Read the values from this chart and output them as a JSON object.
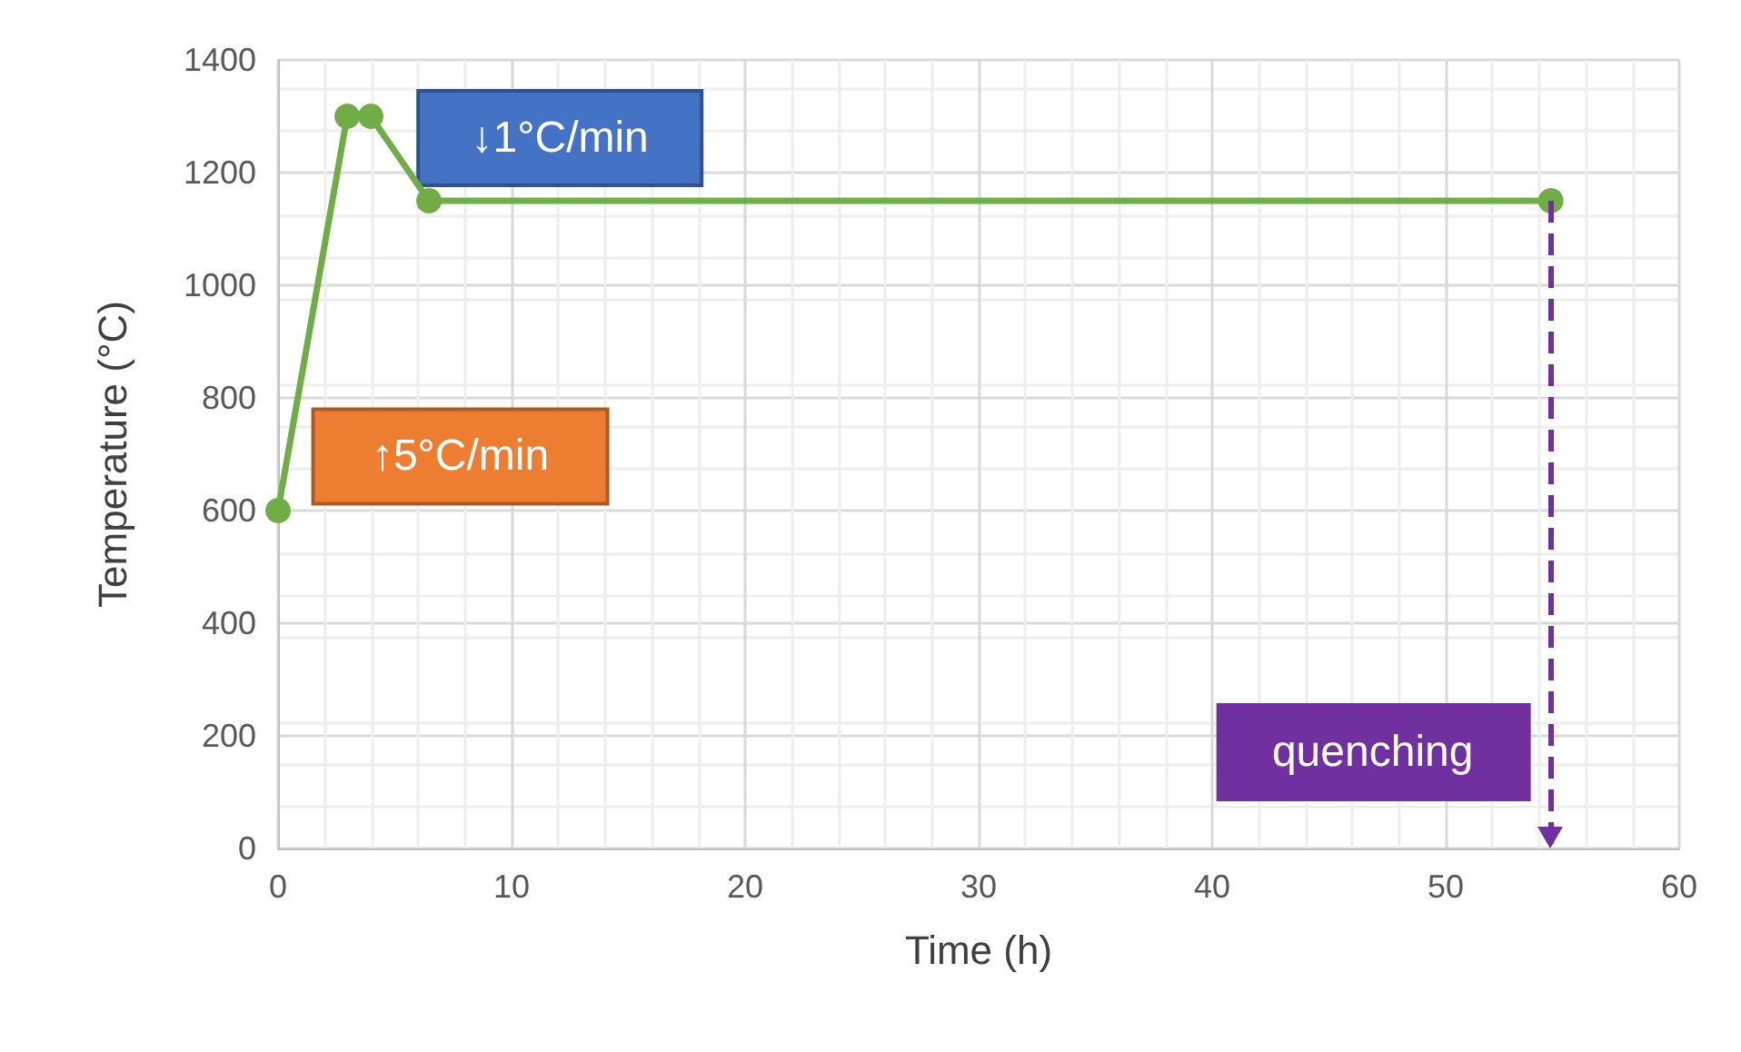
{
  "chart_data": {
    "type": "line",
    "xlabel": "Time (h)",
    "ylabel": "Temperature (°C)",
    "x": [
      0,
      2.96,
      3.97,
      6.46,
      54.5
    ],
    "series": [
      {
        "color": "#70ad47",
        "values": [
          600,
          1300,
          1300,
          1150,
          1150
        ]
      }
    ],
    "xlim": [
      0,
      60
    ],
    "xticks": [
      0,
      10,
      20,
      30,
      40,
      50,
      60
    ],
    "ylim": [
      0,
      1400
    ],
    "yticks": [
      0,
      200,
      400,
      600,
      800,
      1000,
      1200,
      1400
    ],
    "grid": true,
    "marker": "circle",
    "line_style": "solid",
    "annotations": [
      "↓1°C/min",
      "↑5°C/min"
    ],
    "ref_lines": [
      {
        "axis": "x",
        "value": 54.5,
        "label": "quenching",
        "color": "#7030a0",
        "line_style": "dashed"
      }
    ]
  }
}
